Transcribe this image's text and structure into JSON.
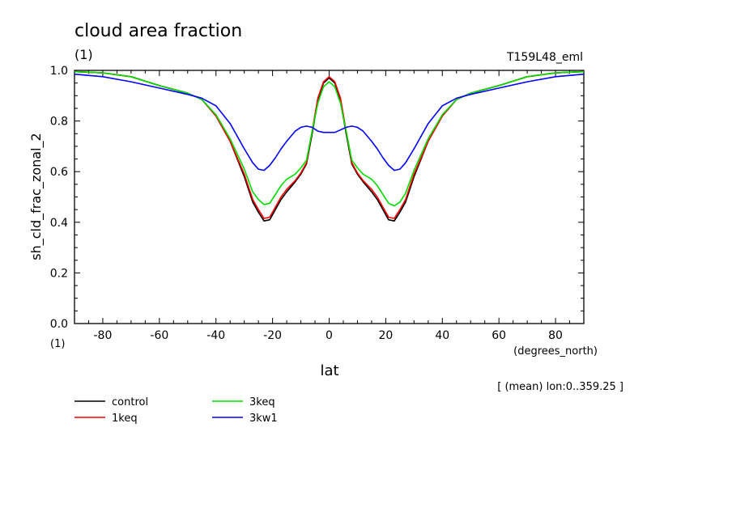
{
  "chart_data": {
    "type": "line",
    "title": "cloud area fraction",
    "units_label": "(1)",
    "experiment": "T159L48_eml",
    "xlabel": "lat",
    "xunits": "(degrees_north)",
    "ylabel": "sh_cld_frac_zonal_2",
    "yunits": "(1)",
    "annotation": "[ (mean) lon:0..359.25 ]",
    "xlim": [
      -90,
      90
    ],
    "ylim": [
      0,
      1
    ],
    "xticks": [
      -80,
      -60,
      -40,
      -20,
      0,
      20,
      40,
      60,
      80
    ],
    "xtick_labels": [
      "-80",
      "-60",
      "-40",
      "-20",
      "0",
      "20",
      "40",
      "60",
      "80"
    ],
    "yticks": [
      0,
      0.2,
      0.4,
      0.6,
      0.8,
      1.0
    ],
    "ytick_labels": [
      "0.0",
      "0.2",
      "0.4",
      "0.6",
      "0.8",
      "1.0"
    ],
    "grid": false,
    "legend_position": "bottom-left",
    "x": [
      -90,
      -80,
      -70,
      -60,
      -50,
      -45,
      -40,
      -35,
      -30,
      -27,
      -25,
      -23,
      -21,
      -19,
      -17,
      -15,
      -12,
      -10,
      -8,
      -6,
      -4,
      -2,
      0,
      2,
      4,
      6,
      8,
      10,
      12,
      15,
      17,
      19,
      21,
      23,
      25,
      27,
      30,
      35,
      40,
      45,
      50,
      60,
      70,
      80,
      90
    ],
    "series": [
      {
        "name": "control",
        "color": "#000000",
        "values": [
          0.995,
          0.99,
          0.975,
          0.94,
          0.91,
          0.885,
          0.82,
          0.72,
          0.58,
          0.48,
          0.44,
          0.405,
          0.41,
          0.45,
          0.49,
          0.52,
          0.56,
          0.59,
          0.63,
          0.75,
          0.88,
          0.95,
          0.97,
          0.95,
          0.88,
          0.75,
          0.63,
          0.59,
          0.56,
          0.52,
          0.49,
          0.45,
          0.41,
          0.405,
          0.44,
          0.48,
          0.58,
          0.72,
          0.82,
          0.885,
          0.91,
          0.94,
          0.975,
          0.99,
          0.995
        ]
      },
      {
        "name": "1keq",
        "color": "#ff0000",
        "values": [
          0.995,
          0.99,
          0.975,
          0.94,
          0.91,
          0.885,
          0.82,
          0.72,
          0.59,
          0.49,
          0.45,
          0.415,
          0.42,
          0.46,
          0.5,
          0.53,
          0.565,
          0.595,
          0.635,
          0.76,
          0.89,
          0.955,
          0.975,
          0.955,
          0.89,
          0.76,
          0.635,
          0.595,
          0.565,
          0.53,
          0.5,
          0.46,
          0.42,
          0.415,
          0.45,
          0.49,
          0.59,
          0.72,
          0.82,
          0.885,
          0.91,
          0.94,
          0.975,
          0.99,
          0.995
        ]
      },
      {
        "name": "3keq",
        "color": "#00dd00",
        "values": [
          0.995,
          0.99,
          0.975,
          0.94,
          0.91,
          0.885,
          0.825,
          0.73,
          0.61,
          0.52,
          0.49,
          0.47,
          0.475,
          0.51,
          0.545,
          0.57,
          0.59,
          0.615,
          0.645,
          0.76,
          0.87,
          0.935,
          0.955,
          0.935,
          0.87,
          0.76,
          0.645,
          0.615,
          0.59,
          0.57,
          0.545,
          0.51,
          0.475,
          0.465,
          0.48,
          0.515,
          0.605,
          0.73,
          0.825,
          0.885,
          0.91,
          0.94,
          0.975,
          0.99,
          0.995
        ]
      },
      {
        "name": "3kw1",
        "color": "#0000ff",
        "values": [
          0.985,
          0.975,
          0.955,
          0.93,
          0.905,
          0.89,
          0.86,
          0.79,
          0.69,
          0.635,
          0.61,
          0.605,
          0.625,
          0.655,
          0.69,
          0.72,
          0.76,
          0.775,
          0.78,
          0.775,
          0.76,
          0.755,
          0.755,
          0.755,
          0.765,
          0.775,
          0.78,
          0.775,
          0.76,
          0.72,
          0.69,
          0.655,
          0.625,
          0.605,
          0.61,
          0.635,
          0.69,
          0.79,
          0.86,
          0.89,
          0.905,
          0.93,
          0.955,
          0.975,
          0.985
        ]
      }
    ]
  }
}
